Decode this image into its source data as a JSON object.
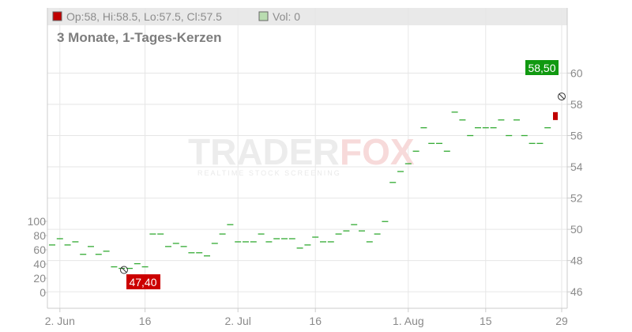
{
  "legend": {
    "ohlc_label": "Op:58, Hi:58.5, Lo:57.5, Cl:57.5",
    "ohlc_color": "#c00000",
    "vol_label": "Vol: 0",
    "vol_color": "#b9dcb0"
  },
  "subtitle": "3 Monate, 1-Tages-Kerzen",
  "watermark": {
    "brand_left": "TRADER",
    "brand_right": "FOX",
    "tagline": "REALTIME STOCK SCREENING"
  },
  "colors": {
    "up": "#33aa33",
    "down": "#c00000",
    "grid": "#e6e6e6",
    "axis": "#cccccc",
    "high_label_bg": "#119911",
    "low_label_bg": "#cc0000"
  },
  "chart_data": {
    "type": "candlestick",
    "x_tick_labels": [
      "2. Jun",
      "16",
      "2. Jul",
      "16",
      "1. Aug",
      "15",
      "29"
    ],
    "y_axis_right": {
      "ticks": [
        46,
        48,
        50,
        52,
        54,
        56,
        58,
        60
      ],
      "range": [
        45.2,
        62.4
      ]
    },
    "y_axis_left_volume": {
      "ticks": [
        0,
        20,
        40,
        60,
        80,
        100
      ],
      "range": [
        0,
        100
      ]
    },
    "high_marker": {
      "label": "58,50",
      "value": 58.5
    },
    "low_marker": {
      "label": "47,40",
      "value": 47.4
    },
    "closes": [
      49.0,
      49.4,
      49.0,
      49.2,
      48.4,
      48.9,
      48.4,
      48.6,
      47.6,
      47.5,
      47.5,
      47.8,
      47.6,
      49.7,
      49.7,
      48.9,
      49.1,
      48.9,
      48.5,
      48.5,
      48.3,
      49.1,
      49.7,
      50.3,
      49.2,
      49.2,
      49.2,
      49.7,
      49.2,
      49.4,
      49.4,
      49.4,
      48.8,
      49.0,
      49.5,
      49.2,
      49.2,
      49.7,
      49.9,
      50.3,
      49.9,
      49.2,
      49.7,
      50.5,
      53.0,
      53.7,
      54.2,
      55.0,
      56.5,
      55.5,
      55.5,
      55.0,
      57.5,
      57.0,
      56.0,
      56.5,
      56.5,
      56.5,
      57.0,
      56.0,
      57.0,
      56.0,
      55.5,
      55.5,
      56.5,
      57.5
    ]
  }
}
